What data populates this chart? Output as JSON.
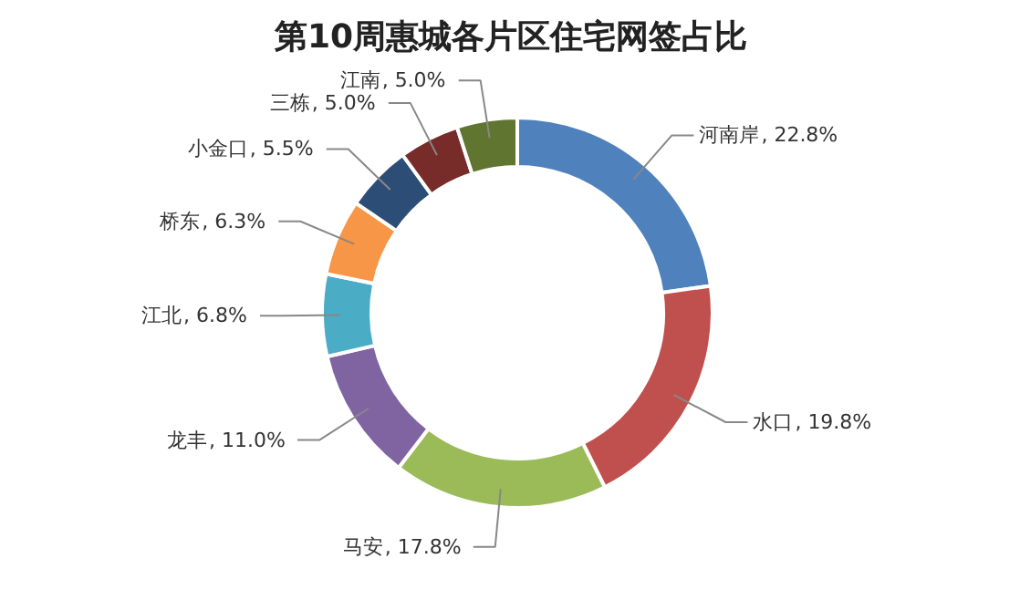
{
  "chart_data": {
    "type": "donut",
    "title": "第10周惠城各片区住宅网签占比",
    "categories": [
      "河南岸",
      "水口",
      "马安",
      "龙丰",
      "江北",
      "桥东",
      "小金口",
      "三栋",
      "江南"
    ],
    "values": [
      22.8,
      19.8,
      17.8,
      11.0,
      6.8,
      6.3,
      5.5,
      5.0,
      5.0
    ],
    "colors": [
      "#4f81bd",
      "#c0504d",
      "#9bbb59",
      "#8064a2",
      "#4bacc6",
      "#f79646",
      "#2c4d75",
      "#772c2a",
      "#5f7530"
    ],
    "value_labels": [
      ", 22.8%",
      ", 19.8%",
      ", 17.8%",
      ", 11.0%",
      ", 6.8%",
      ", 6.3%",
      ", 5.5%",
      ", 5.0%",
      ", 5.0%"
    ]
  }
}
